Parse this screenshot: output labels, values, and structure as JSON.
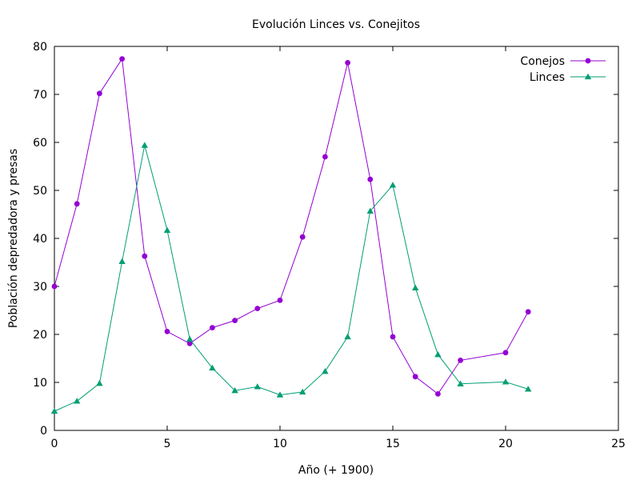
{
  "chart_data": {
    "type": "line",
    "title": "Evolución Linces vs. Conejitos",
    "xlabel": "Año (+ 1900)",
    "ylabel": "Población depredadora y presas",
    "xlim": [
      0,
      25
    ],
    "ylim": [
      0,
      80
    ],
    "xticks": [
      0,
      5,
      10,
      15,
      20,
      25
    ],
    "yticks": [
      0,
      10,
      20,
      30,
      40,
      50,
      60,
      70,
      80
    ],
    "grid": false,
    "legend_position": "top-right",
    "series": [
      {
        "name": "Conejos",
        "color": "#9400d3",
        "marker": "circle",
        "x": [
          0,
          1,
          2,
          3,
          4,
          5,
          6,
          7,
          8,
          9,
          10,
          11,
          12,
          13,
          14,
          15,
          16,
          17,
          18,
          20,
          21
        ],
        "y": [
          30,
          47.2,
          70.2,
          77.4,
          36.3,
          20.6,
          18.1,
          21.4,
          22.9,
          25.4,
          27.1,
          40.3,
          57,
          76.6,
          52.3,
          19.5,
          11.2,
          7.6,
          14.6,
          16.2,
          24.7
        ]
      },
      {
        "name": "Linces",
        "color": "#009e73",
        "marker": "triangle",
        "x": [
          0,
          1,
          2,
          3,
          4,
          5,
          6,
          7,
          8,
          9,
          10,
          11,
          12,
          13,
          14,
          15,
          16,
          17,
          18,
          20,
          21
        ],
        "y": [
          4,
          6.1,
          9.8,
          35.2,
          59.4,
          41.7,
          19,
          13,
          8.3,
          9.1,
          7.4,
          8,
          12.3,
          19.5,
          45.7,
          51.1,
          29.7,
          15.8,
          9.7,
          10.1,
          8.6
        ]
      }
    ]
  }
}
